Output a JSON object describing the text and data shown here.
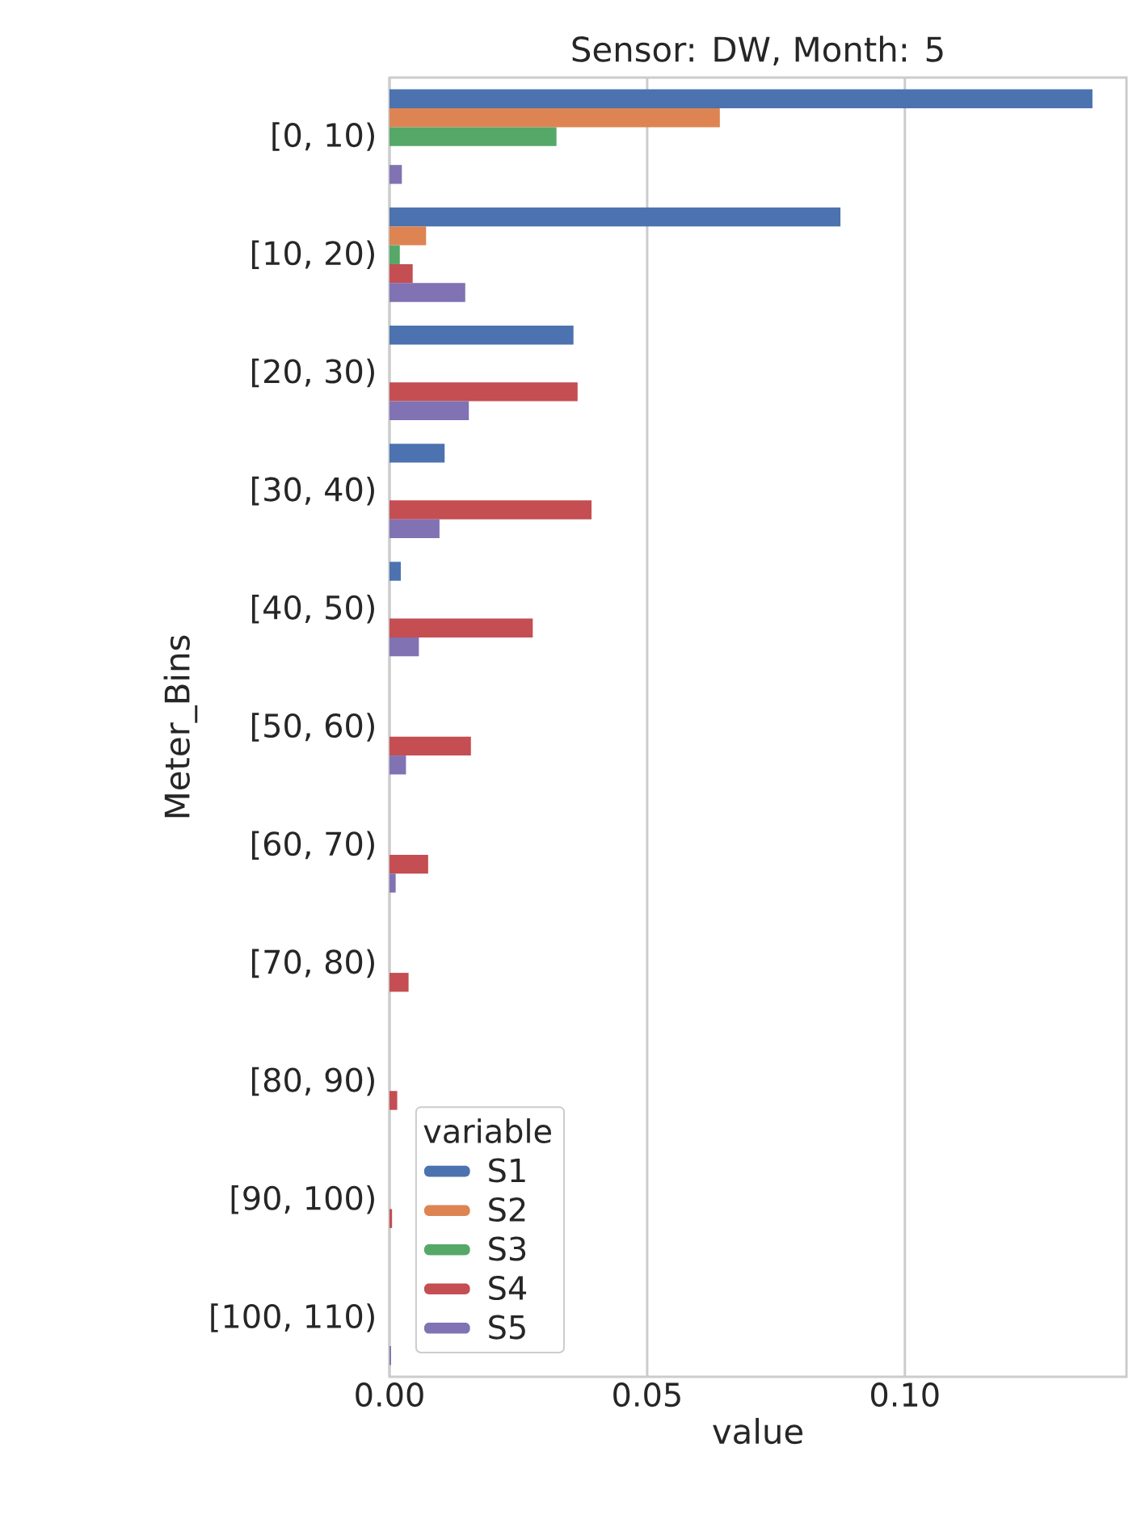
{
  "chart_data": {
    "type": "bar",
    "orientation": "horizontal",
    "title": "Sensor: DW, Month: 5",
    "xlabel": "value",
    "ylabel": "Meter_Bins",
    "legend_title": "variable",
    "legend": "bottom left",
    "grid": "x",
    "categories": [
      "[0, 10)",
      "[10, 20)",
      "[20, 30)",
      "[30, 40)",
      "[40, 50)",
      "[50, 60)",
      "[60, 70)",
      "[70, 80)",
      "[80, 90)",
      "[90, 100)",
      "[100, 110)"
    ],
    "xlim": [
      0,
      0.143
    ],
    "xticks": [
      {
        "value": 0,
        "label": "0.00"
      },
      {
        "value": 0.05,
        "label": "0.05"
      },
      {
        "value": 0.1,
        "label": "0.10"
      }
    ],
    "series": [
      {
        "name": "S1",
        "color": "#4c72b0",
        "values": [
          0.1364,
          0.0875,
          0.0357,
          0.0107,
          0.0022,
          null,
          null,
          null,
          null,
          null,
          null
        ]
      },
      {
        "name": "S2",
        "color": "#dd8452",
        "values": [
          0.0641,
          0.0071,
          null,
          null,
          null,
          null,
          null,
          null,
          null,
          null,
          null
        ]
      },
      {
        "name": "S3",
        "color": "#55a868",
        "values": [
          0.0324,
          0.002,
          null,
          null,
          null,
          null,
          null,
          null,
          null,
          null,
          null
        ]
      },
      {
        "name": "S4",
        "color": "#c44e52",
        "values": [
          null,
          0.0045,
          0.0365,
          0.0392,
          0.0278,
          0.0158,
          0.0075,
          0.0037,
          0.0015,
          0.0005,
          null
        ]
      },
      {
        "name": "S5",
        "color": "#8172b3",
        "values": [
          0.0024,
          0.0147,
          0.0154,
          0.0097,
          0.0057,
          0.0032,
          0.0012,
          null,
          null,
          null,
          0.0003
        ]
      }
    ]
  }
}
